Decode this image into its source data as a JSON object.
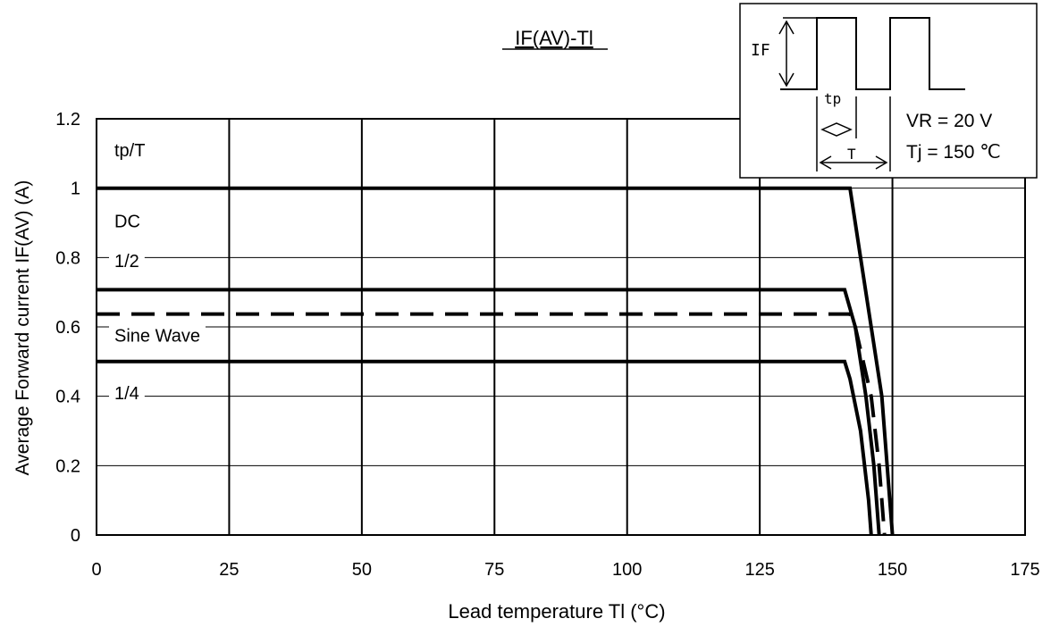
{
  "chart_data": {
    "type": "line",
    "title": "IF(AV)-Tl",
    "xlabel": "Lead temperature Tl (°C)",
    "ylabel": "Average Forward current  IF(AV) (A)",
    "xlim": [
      0,
      175
    ],
    "ylim": [
      0,
      1.2
    ],
    "x_ticks": [
      0,
      25,
      50,
      75,
      100,
      125,
      150,
      175
    ],
    "y_ticks": [
      0,
      0.2,
      0.4,
      0.6,
      0.8,
      1,
      1.2
    ],
    "x_tick_labels": [
      "0",
      "25",
      "50",
      "75",
      "100",
      "125",
      "150",
      "175"
    ],
    "y_tick_labels": [
      "0",
      "0.2",
      "0.4",
      "0.6",
      "0.8",
      "1",
      "1.2"
    ],
    "grid": true,
    "legend_title": "tp/T",
    "series": [
      {
        "name": "DC",
        "style": "solid",
        "points": [
          [
            0,
            1.0
          ],
          [
            142,
            1.0
          ],
          [
            144,
            0.8
          ],
          [
            146,
            0.6
          ],
          [
            148,
            0.4
          ],
          [
            150,
            0.0
          ]
        ]
      },
      {
        "name": "1/2",
        "style": "solid",
        "points": [
          [
            0,
            0.707
          ],
          [
            141,
            0.707
          ],
          [
            143,
            0.6
          ],
          [
            145,
            0.4
          ],
          [
            146.5,
            0.2
          ],
          [
            147.5,
            0.0
          ]
        ]
      },
      {
        "name": "Sine Wave",
        "style": "dashed",
        "points": [
          [
            0,
            0.637
          ],
          [
            142,
            0.637
          ],
          [
            143,
            0.6
          ],
          [
            146,
            0.4
          ],
          [
            147.5,
            0.2
          ],
          [
            148.5,
            0.0
          ]
        ]
      },
      {
        "name": "1/4",
        "style": "solid",
        "points": [
          [
            0,
            0.5
          ],
          [
            141,
            0.5
          ],
          [
            142,
            0.45
          ],
          [
            144,
            0.3
          ],
          [
            145.5,
            0.1
          ],
          [
            146,
            0.0
          ]
        ]
      }
    ],
    "series_labels_y": [
      0.905,
      0.79,
      0.575,
      0.41
    ]
  },
  "inset": {
    "if_label": "IF",
    "tp_label": "tp",
    "t_label": "T",
    "vr_text": "VR = 20 V",
    "tj_text": "Tj = 150 ℃"
  },
  "colors": {
    "line": "#000000",
    "grid": "#000000",
    "background": "#ffffff"
  }
}
